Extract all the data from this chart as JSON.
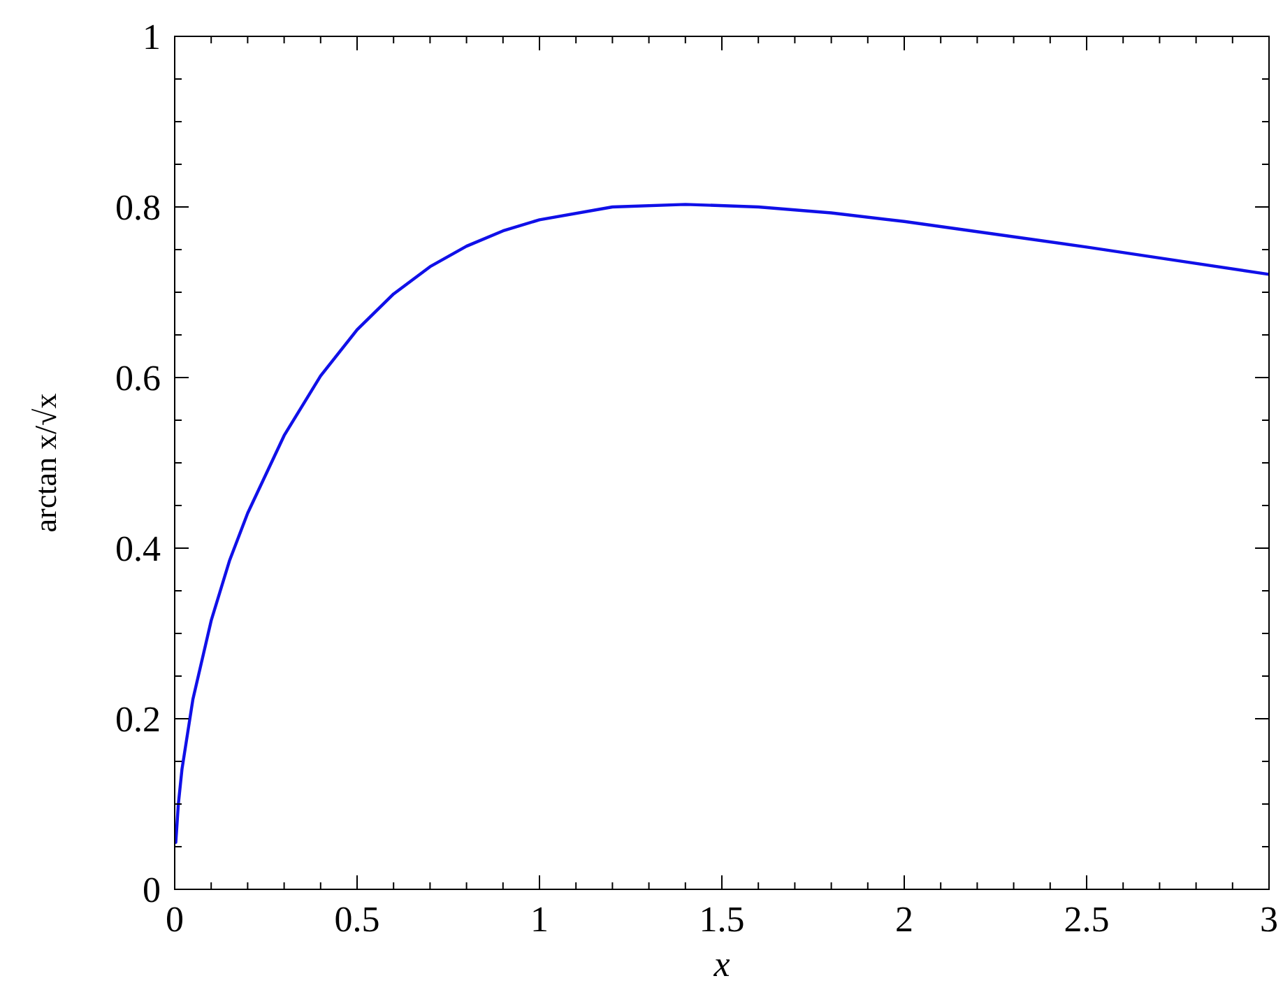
{
  "chart_data": {
    "type": "line",
    "xlabel": "x",
    "ylabel": "arctan x/√x",
    "series": [
      {
        "color": "#1010e8",
        "x": [
          0.003,
          0.01,
          0.02,
          0.05,
          0.1,
          0.15,
          0.2,
          0.3,
          0.4,
          0.5,
          0.6,
          0.7,
          0.8,
          0.9,
          1.0,
          1.2,
          1.4,
          1.6,
          1.8,
          2.0,
          2.25,
          2.5,
          2.75,
          3.0
        ],
        "values": [
          0.055,
          0.1,
          0.141,
          0.223,
          0.315,
          0.385,
          0.441,
          0.532,
          0.602,
          0.656,
          0.698,
          0.73,
          0.754,
          0.772,
          0.785,
          0.8,
          0.803,
          0.8,
          0.793,
          0.783,
          0.768,
          0.753,
          0.737,
          0.721
        ]
      }
    ],
    "xlim": [
      0,
      3
    ],
    "ylim": [
      0,
      1
    ],
    "xticks": [
      0,
      {
        "value": 0.1,
        "label": null
      },
      {
        "value": 0.2,
        "label": null
      },
      {
        "value": 0.3,
        "label": null
      },
      {
        "value": 0.4,
        "label": null
      },
      0.5,
      {
        "value": 0.6,
        "label": null
      },
      {
        "value": 0.7,
        "label": null
      },
      {
        "value": 0.8,
        "label": null
      },
      {
        "value": 0.9,
        "label": null
      },
      1,
      {
        "value": 1.1,
        "label": null
      },
      {
        "value": 1.2,
        "label": null
      },
      {
        "value": 1.3,
        "label": null
      },
      {
        "value": 1.4,
        "label": null
      },
      1.5,
      {
        "value": 1.6,
        "label": null
      },
      {
        "value": 1.7,
        "label": null
      },
      {
        "value": 1.8,
        "label": null
      },
      {
        "value": 1.9,
        "label": null
      },
      2,
      {
        "value": 2.1,
        "label": null
      },
      {
        "value": 2.2,
        "label": null
      },
      {
        "value": 2.3,
        "label": null
      },
      {
        "value": 2.4,
        "label": null
      },
      2.5,
      {
        "value": 2.6,
        "label": null
      },
      {
        "value": 2.7,
        "label": null
      },
      {
        "value": 2.8,
        "label": null
      },
      {
        "value": 2.9,
        "label": null
      },
      3
    ],
    "yticks": [
      0,
      {
        "value": 0.05,
        "label": null
      },
      {
        "value": 0.1,
        "label": null
      },
      {
        "value": 0.15,
        "label": null
      },
      0.2,
      {
        "value": 0.25,
        "label": null
      },
      {
        "value": 0.3,
        "label": null
      },
      {
        "value": 0.35,
        "label": null
      },
      0.4,
      {
        "value": 0.45,
        "label": null
      },
      {
        "value": 0.5,
        "label": null
      },
      {
        "value": 0.55,
        "label": null
      },
      0.6,
      {
        "value": 0.65,
        "label": null
      },
      {
        "value": 0.7,
        "label": null
      },
      {
        "value": 0.75,
        "label": null
      },
      0.8,
      {
        "value": 0.85,
        "label": null
      },
      {
        "value": 0.9,
        "label": null
      },
      {
        "value": 0.95,
        "label": null
      },
      1
    ],
    "grid": false,
    "line_style": "solid"
  }
}
